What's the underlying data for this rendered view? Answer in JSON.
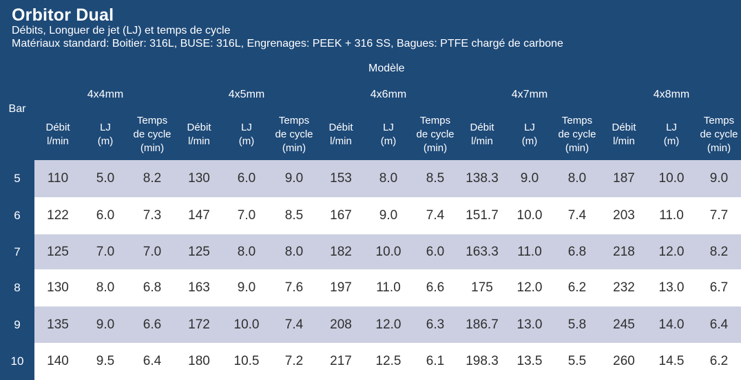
{
  "title": "Orbitor Dual",
  "subtitle1": "Débits, Longuer de jet (LJ) et temps de cycle",
  "subtitle2": "Matériaux standard: Boitier: 316L, BUSE: 316L, Engrenages: PEEK + 316 SS, Bagues: PTFE chargé de carbone",
  "modele_label": "Modèle",
  "bar_label": "Bar",
  "models": [
    "4x4mm",
    "4x5mm",
    "4x6mm",
    "4x7mm",
    "4x8mm"
  ],
  "column_headers": {
    "debit": [
      "Débit",
      "l/min"
    ],
    "lj": [
      "LJ",
      "(m)"
    ],
    "temps": [
      "Temps",
      "de cycle",
      "(min)"
    ]
  },
  "colors": {
    "header_bg": "#1e4a78",
    "row_shaded": "#cbcfe1",
    "row_plain": "#ffffff",
    "cell_text": "#2f2f2f"
  },
  "rows": [
    {
      "bar": "5",
      "cells": [
        "110",
        "5.0",
        "8.2",
        "130",
        "6.0",
        "9.0",
        "153",
        "8.0",
        "8.5",
        "138.3",
        "9.0",
        "8.0",
        "187",
        "10.0",
        "9.0"
      ]
    },
    {
      "bar": "6",
      "cells": [
        "122",
        "6.0",
        "7.3",
        "147",
        "7.0",
        "8.5",
        "167",
        "9.0",
        "7.4",
        "151.7",
        "10.0",
        "7.4",
        "203",
        "11.0",
        "7.7"
      ]
    },
    {
      "bar": "7",
      "cells": [
        "125",
        "7.0",
        "7.0",
        "125",
        "8.0",
        "8.0",
        "182",
        "10.0",
        "6.0",
        "163.3",
        "11.0",
        "6.8",
        "218",
        "12.0",
        "8.2"
      ]
    },
    {
      "bar": "8",
      "cells": [
        "130",
        "8.0",
        "6.8",
        "163",
        "9.0",
        "7.6",
        "197",
        "11.0",
        "6.6",
        "175",
        "12.0",
        "6.2",
        "232",
        "13.0",
        "6.7"
      ]
    },
    {
      "bar": "9",
      "cells": [
        "135",
        "9.0",
        "6.6",
        "172",
        "10.0",
        "7.4",
        "208",
        "12.0",
        "6.3",
        "186.7",
        "13.0",
        "5.8",
        "245",
        "14.0",
        "6.4"
      ]
    },
    {
      "bar": "10",
      "cells": [
        "140",
        "9.5",
        "6.4",
        "180",
        "10.5",
        "7.2",
        "217",
        "12.5",
        "6.1",
        "198.3",
        "13.5",
        "5.5",
        "260",
        "14.5",
        "6.2"
      ]
    }
  ]
}
